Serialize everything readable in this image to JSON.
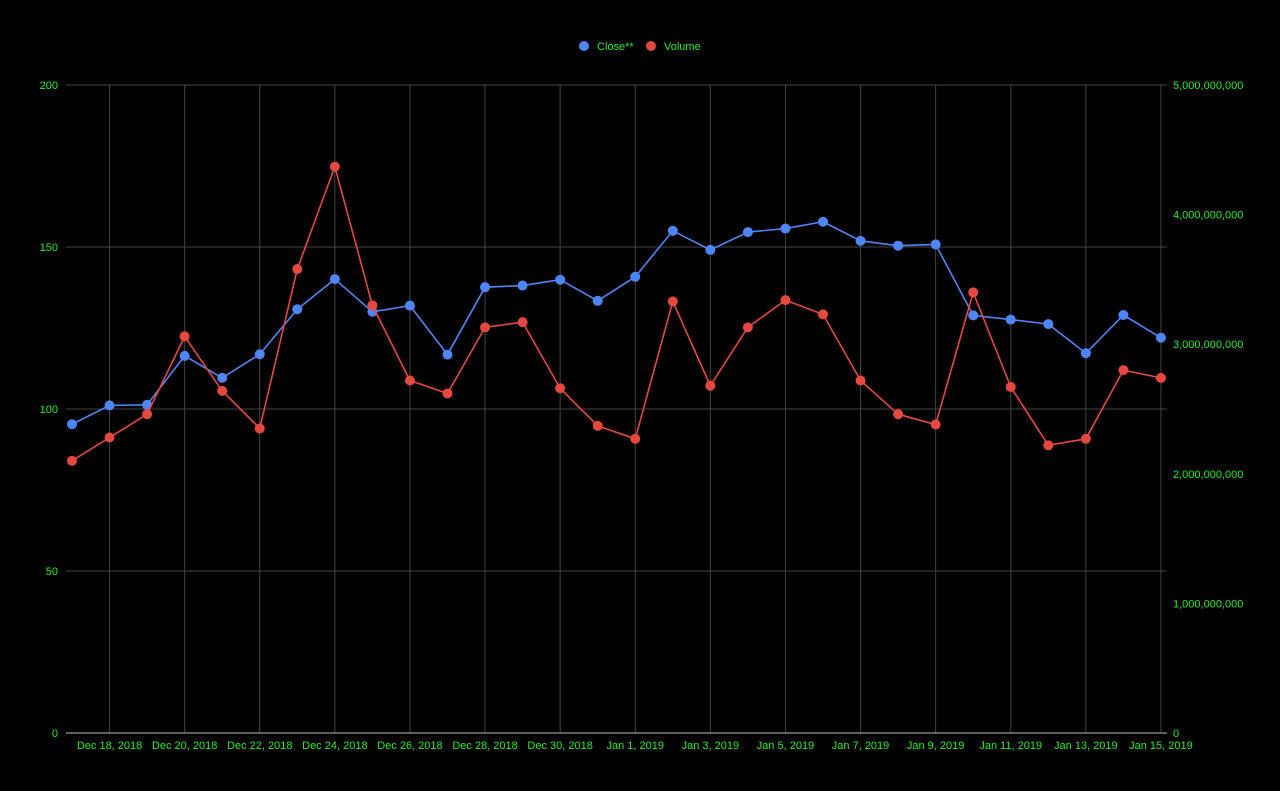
{
  "colors": {
    "background": "#000000",
    "text": "#22ee22",
    "grid": "#444444",
    "axis": "#bbbbbb",
    "close": "#4f86f7",
    "volume": "#e5483f"
  },
  "chart_data": {
    "type": "line",
    "grid": true,
    "legend_position": "top-center",
    "x": [
      "Dec 17, 2018",
      "Dec 18, 2018",
      "Dec 19, 2018",
      "Dec 20, 2018",
      "Dec 21, 2018",
      "Dec 22, 2018",
      "Dec 23, 2018",
      "Dec 24, 2018",
      "Dec 25, 2018",
      "Dec 26, 2018",
      "Dec 27, 2018",
      "Dec 28, 2018",
      "Dec 29, 2018",
      "Dec 30, 2018",
      "Dec 31, 2018",
      "Jan 1, 2019",
      "Jan 2, 2019",
      "Jan 3, 2019",
      "Jan 4, 2019",
      "Jan 5, 2019",
      "Jan 6, 2019",
      "Jan 7, 2019",
      "Jan 8, 2019",
      "Jan 9, 2019",
      "Jan 10, 2019",
      "Jan 11, 2019",
      "Jan 12, 2019",
      "Jan 13, 2019",
      "Jan 14, 2019",
      "Jan 15, 2019"
    ],
    "x_tick_labels": [
      "Dec 18, 2018",
      "Dec 20, 2018",
      "Dec 22, 2018",
      "Dec 24, 2018",
      "Dec 26, 2018",
      "Dec 28, 2018",
      "Dec 30, 2018",
      "Jan 1, 2019",
      "Jan 3, 2019",
      "Jan 5, 2019",
      "Jan 7, 2019",
      "Jan 9, 2019",
      "Jan 11, 2019",
      "Jan 13, 2019",
      "Jan 15, 2019"
    ],
    "y_left": {
      "min": 0,
      "max": 200,
      "ticks": [
        "0",
        "50",
        "100",
        "150",
        "200"
      ]
    },
    "y_right": {
      "min": 0,
      "max": 5000000000,
      "ticks": [
        "0",
        "1,000,000,000",
        "2,000,000,000",
        "3,000,000,000",
        "4,000,000,000",
        "5,000,000,000"
      ]
    },
    "series": [
      {
        "name": "Close**",
        "axis": "left",
        "color": "#4f86f7",
        "values": [
          95.3,
          101.1,
          101.3,
          116.4,
          109.6,
          116.9,
          130.8,
          140.1,
          130.0,
          131.9,
          116.8,
          137.6,
          138.1,
          139.9,
          133.4,
          140.8,
          155.0,
          149.1,
          154.6,
          155.7,
          157.8,
          151.9,
          150.4,
          150.8,
          128.9,
          127.6,
          126.2,
          117.2,
          129.0,
          122.0
        ]
      },
      {
        "name": "Volume",
        "axis": "right",
        "color": "#e5483f",
        "values": [
          2100000000,
          2280000000,
          2460000000,
          3060000000,
          2640000000,
          2350000000,
          3580000000,
          4370000000,
          3300000000,
          2720000000,
          2620000000,
          3130000000,
          3170000000,
          2660000000,
          2370000000,
          2270000000,
          3330000000,
          2680000000,
          3130000000,
          3340000000,
          3230000000,
          2720000000,
          2460000000,
          2380000000,
          3400000000,
          2670000000,
          2220000000,
          2270000000,
          2800000000,
          2740000000
        ]
      }
    ]
  }
}
